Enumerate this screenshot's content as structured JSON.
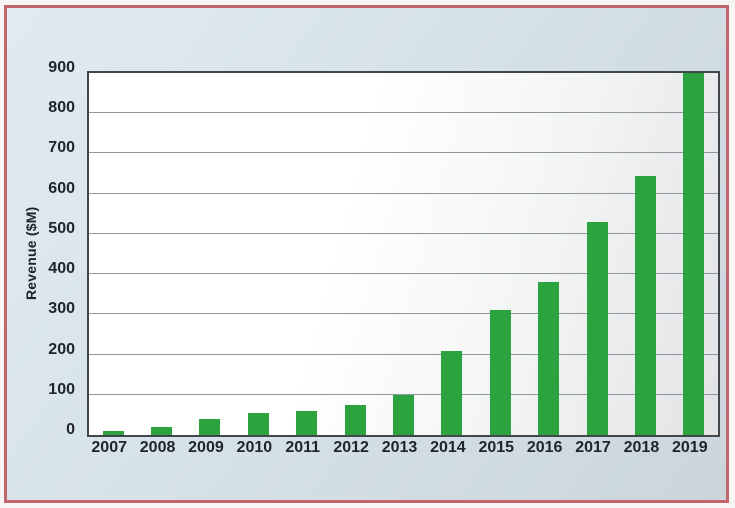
{
  "chart_data": {
    "type": "bar",
    "title": "",
    "categories": [
      "2007",
      "2008",
      "2009",
      "2010",
      "2011",
      "2012",
      "2013",
      "2014",
      "2015",
      "2016",
      "2017",
      "2018",
      "2019"
    ],
    "values": [
      10,
      20,
      40,
      55,
      60,
      75,
      100,
      210,
      310,
      380,
      530,
      645,
      900
    ],
    "xlabel": "",
    "ylabel": "Revenue ($M)",
    "ylim": [
      0,
      900
    ],
    "yticks": [
      0,
      100,
      200,
      300,
      400,
      500,
      600,
      700,
      800,
      900
    ],
    "grid": "horizontal-only",
    "legend": "none",
    "colors": {
      "bar": "#2ba33e",
      "panel_border": "#c4646c",
      "panel_background_start": "#e0ebf1",
      "panel_background_end": "#cad5dc",
      "plot_frame": "#41464b",
      "gridline": "#90969b",
      "text": "#1f2428"
    }
  }
}
